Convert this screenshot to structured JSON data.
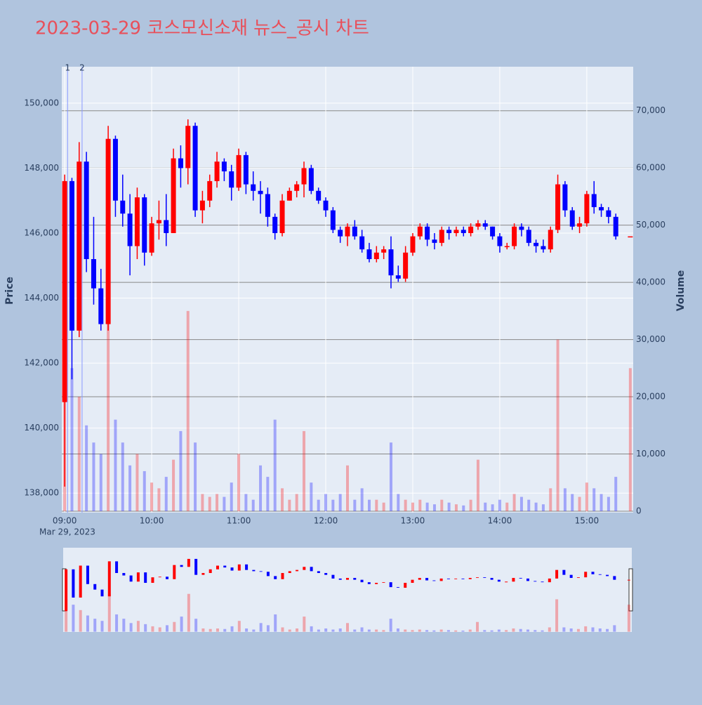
{
  "chart_data": {
    "type": "candlestick",
    "title": "2023-03-29 코스모신소재 뉴스_공시 차트",
    "y_label": "Price",
    "y2_label": "Volume",
    "x_sublabel": "Mar 29, 2023",
    "increasing_color": "#ff0000",
    "decreasing_color": "#0000ff",
    "xlim": [
      "08:58",
      "15:32"
    ],
    "xticks": [
      "09:00",
      "10:00",
      "11:00",
      "12:00",
      "13:00",
      "14:00",
      "15:00"
    ],
    "ylim": [
      137400,
      151120
    ],
    "yticks": [
      {
        "value": 138000,
        "label": "138,000"
      },
      {
        "value": 140000,
        "label": "140,000"
      },
      {
        "value": 142000,
        "label": "142,000"
      },
      {
        "value": 144000,
        "label": "144,000"
      },
      {
        "value": 146000,
        "label": "146,000"
      },
      {
        "value": 148000,
        "label": "148,000"
      },
      {
        "value": 150000,
        "label": "150,000"
      }
    ],
    "y2lim": [
      -250,
      77700
    ],
    "y2ticks": [
      0,
      {
        "value": 10000,
        "label": "10,000"
      },
      {
        "value": 20000,
        "label": "20,000"
      },
      {
        "value": 30000,
        "label": "30,000"
      },
      {
        "value": 40000,
        "label": "40,000"
      },
      {
        "value": 50000,
        "label": "50,000"
      },
      {
        "value": 60000,
        "label": "60,000"
      },
      {
        "value": 70000,
        "label": "70,000"
      }
    ],
    "grid": true,
    "annotations": [
      {
        "x": "09:02",
        "text": "1"
      },
      {
        "x": "09:12",
        "text": "2"
      }
    ],
    "x": [
      "09:00",
      "09:05",
      "09:10",
      "09:15",
      "09:20",
      "09:25",
      "09:30",
      "09:35",
      "09:40",
      "09:45",
      "09:50",
      "09:55",
      "10:00",
      "10:05",
      "10:10",
      "10:15",
      "10:20",
      "10:25",
      "10:30",
      "10:35",
      "10:40",
      "10:45",
      "10:50",
      "10:55",
      "11:00",
      "11:05",
      "11:10",
      "11:15",
      "11:20",
      "11:25",
      "11:30",
      "11:35",
      "11:40",
      "11:45",
      "11:50",
      "11:55",
      "12:00",
      "12:05",
      "12:10",
      "12:15",
      "12:20",
      "12:25",
      "12:30",
      "12:35",
      "12:40",
      "12:45",
      "12:50",
      "12:55",
      "13:00",
      "13:05",
      "13:10",
      "13:15",
      "13:20",
      "13:25",
      "13:30",
      "13:35",
      "13:40",
      "13:45",
      "13:50",
      "13:55",
      "14:00",
      "14:05",
      "14:10",
      "14:15",
      "14:20",
      "14:25",
      "14:30",
      "14:35",
      "14:40",
      "14:45",
      "14:50",
      "14:55",
      "15:00",
      "15:05",
      "15:10",
      "15:15",
      "15:20",
      "15:30"
    ],
    "open": [
      140800,
      147600,
      143000,
      148200,
      145200,
      144300,
      143200,
      148900,
      147000,
      146600,
      145600,
      147100,
      145400,
      146300,
      146400,
      146000,
      148300,
      148000,
      149300,
      146700,
      147000,
      147600,
      148200,
      147900,
      147400,
      148400,
      147500,
      147300,
      147200,
      146500,
      146000,
      147000,
      147300,
      147500,
      148000,
      147300,
      147000,
      146700,
      146100,
      145900,
      146200,
      145900,
      145500,
      145200,
      145400,
      145500,
      144700,
      144600,
      145400,
      145900,
      146200,
      145800,
      145700,
      146100,
      146000,
      146100,
      146000,
      146200,
      146300,
      146200,
      145900,
      145600,
      145600,
      146200,
      146100,
      145700,
      145600,
      145500,
      146100,
      147500,
      146700,
      146200,
      146300,
      147200,
      146800,
      146700,
      146500,
      145900
    ],
    "high": [
      147800,
      147700,
      148800,
      148500,
      146500,
      144900,
      149300,
      149000,
      147800,
      147200,
      147400,
      147200,
      146500,
      147000,
      147200,
      148600,
      148700,
      149500,
      149400,
      147300,
      147800,
      148500,
      148300,
      148100,
      148600,
      148500,
      147900,
      147600,
      147400,
      146600,
      147200,
      147400,
      147600,
      148200,
      148100,
      147400,
      147100,
      146800,
      146200,
      146300,
      146400,
      146100,
      145700,
      145600,
      145600,
      145900,
      145000,
      145600,
      146000,
      146300,
      146300,
      146000,
      146200,
      146200,
      146200,
      146200,
      146300,
      146400,
      146400,
      146200,
      146000,
      145700,
      146300,
      146300,
      146200,
      145800,
      145800,
      146200,
      147800,
      147600,
      146800,
      146500,
      147300,
      147600,
      146900,
      146800,
      146600,
      145900
    ],
    "low": [
      138200,
      141500,
      142800,
      144800,
      143800,
      143000,
      143000,
      146500,
      146200,
      144700,
      145200,
      145000,
      145300,
      145800,
      145600,
      146000,
      147400,
      147500,
      146500,
      146300,
      146800,
      147400,
      147600,
      147000,
      147300,
      147200,
      147000,
      146600,
      146200,
      145800,
      145900,
      147000,
      147100,
      147100,
      147200,
      146900,
      146500,
      146000,
      145700,
      145600,
      145800,
      145400,
      145100,
      145100,
      145200,
      144300,
      144500,
      144500,
      145300,
      145800,
      145600,
      145500,
      145600,
      145800,
      145900,
      145900,
      145900,
      146100,
      146100,
      145800,
      145400,
      145500,
      145500,
      145900,
      145600,
      145400,
      145400,
      145400,
      146000,
      146500,
      146100,
      146000,
      146200,
      146600,
      146500,
      146300,
      145800,
      145900
    ],
    "close": [
      147600,
      143000,
      148200,
      145200,
      144300,
      143200,
      148900,
      147000,
      146600,
      145600,
      147100,
      145400,
      146300,
      146400,
      146000,
      148300,
      148000,
      149300,
      146700,
      147000,
      147600,
      148200,
      147900,
      147400,
      148400,
      147500,
      147300,
      147200,
      146500,
      146000,
      147000,
      147300,
      147500,
      148000,
      147300,
      147000,
      146700,
      146100,
      145900,
      146200,
      145900,
      145500,
      145200,
      145400,
      145500,
      144700,
      144600,
      145400,
      145900,
      146200,
      145800,
      145700,
      146100,
      146000,
      146100,
      146000,
      146200,
      146300,
      146200,
      145900,
      145600,
      145600,
      146200,
      146100,
      145700,
      145600,
      145500,
      146100,
      147500,
      146700,
      146200,
      146300,
      147200,
      146800,
      146700,
      146500,
      145900,
      145900
    ],
    "volume": [
      30000,
      25000,
      20000,
      15000,
      12000,
      10000,
      35000,
      16000,
      12000,
      8000,
      10000,
      7000,
      5000,
      4000,
      6000,
      9000,
      14000,
      35000,
      12000,
      3000,
      2500,
      3000,
      2500,
      5000,
      10000,
      3000,
      2000,
      8000,
      6000,
      16000,
      4000,
      2000,
      3000,
      14000,
      5000,
      2000,
      3000,
      2000,
      3000,
      8000,
      2000,
      4000,
      2000,
      2000,
      1500,
      12000,
      3000,
      2000,
      1500,
      2000,
      1500,
      1200,
      2000,
      1500,
      1200,
      1000,
      2000,
      9000,
      1500,
      1200,
      2000,
      1500,
      3000,
      2500,
      2000,
      1500,
      1200,
      4000,
      30000,
      4000,
      3000,
      2500,
      5000,
      4000,
      3000,
      2500,
      6000,
      25000
    ]
  }
}
